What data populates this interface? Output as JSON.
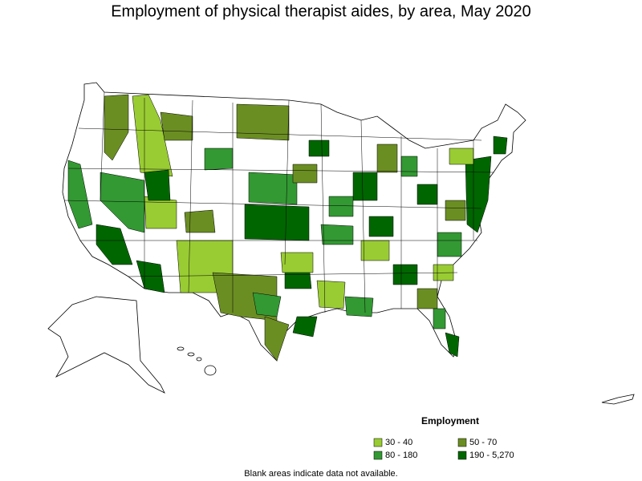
{
  "title": "Employment of physical therapist aides, by area, May 2020",
  "legend": {
    "title": "Employment",
    "items": [
      {
        "label": "30 - 40",
        "color": "#99cc33"
      },
      {
        "label": "50 - 70",
        "color": "#6b8e23"
      },
      {
        "label": "80 - 180",
        "color": "#339933"
      },
      {
        "label": "190 - 5,270",
        "color": "#006600"
      }
    ]
  },
  "footnote": "Blank areas indicate data not available."
}
